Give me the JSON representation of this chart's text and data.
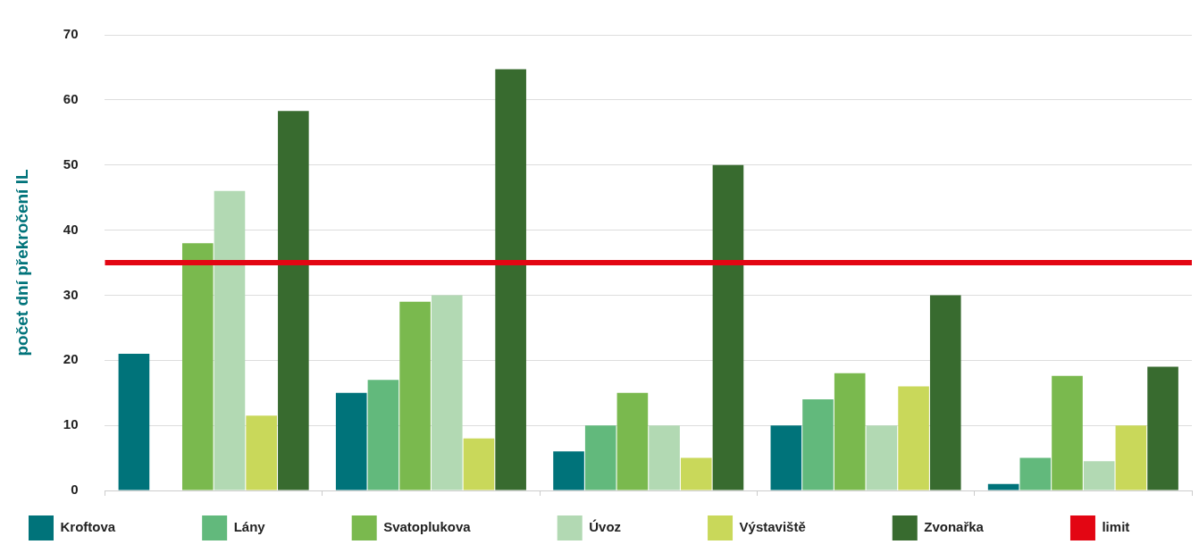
{
  "chart_data": {
    "type": "bar",
    "ylabel": "počet dní překročení IL",
    "categories": [
      null,
      null,
      null,
      null,
      null
    ],
    "series": [
      {
        "name": "Kroftova",
        "color": "#00737a",
        "values": [
          21,
          15,
          6,
          10,
          1
        ]
      },
      {
        "name": "Lány",
        "color": "#62b97c",
        "values": [
          null,
          17,
          10,
          14,
          5
        ]
      },
      {
        "name": "Svatoplukova",
        "color": "#7ab94e",
        "values": [
          38,
          29,
          15,
          18,
          17.6
        ]
      },
      {
        "name": "Úvoz",
        "color": "#b2d9b3",
        "values": [
          46,
          30,
          10,
          10,
          4.5
        ]
      },
      {
        "name": "Výstaviště",
        "color": "#c9d85a",
        "values": [
          11.5,
          8,
          5,
          16,
          10
        ]
      },
      {
        "name": "Zvonařka",
        "color": "#386b2f",
        "values": [
          58.3,
          64.7,
          50,
          30,
          19
        ]
      }
    ],
    "ref_lines": [
      {
        "axis": "y",
        "value": 35,
        "label": "limit",
        "color": "#e30613"
      }
    ],
    "ylim": [
      0,
      70
    ],
    "yticks": [
      0,
      10,
      20,
      30,
      40,
      50,
      60,
      70
    ],
    "grid": "y",
    "legend": "bottom"
  }
}
